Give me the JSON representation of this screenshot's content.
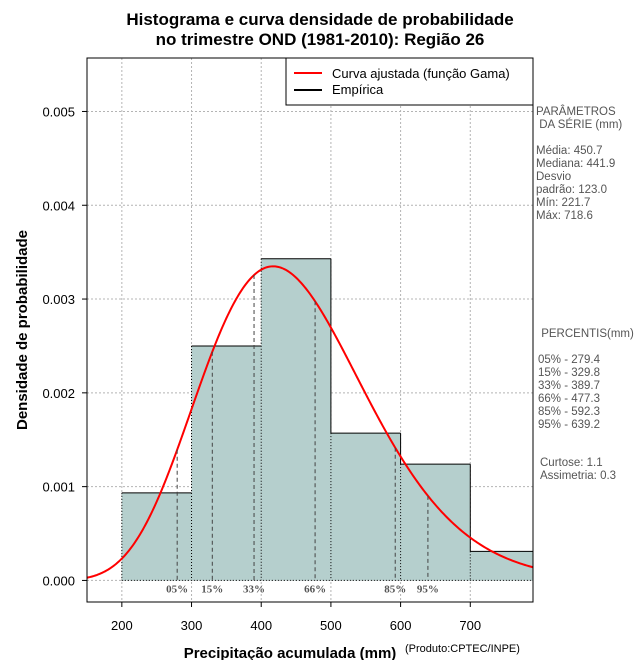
{
  "chart_data": {
    "type": "bar",
    "title": [
      "Histograma e curva densidade de probabilidade",
      "no trimestre OND (1981-2010): Região 26"
    ],
    "xlabel": "Precipitação acumulada (mm)",
    "xlabel_note": "(Produto:CPTEC/INPE)",
    "ylabel": "Densidade de probabilidade",
    "xlim": [
      150,
      790
    ],
    "ylim": [
      -0.00023,
      0.00557
    ],
    "x_ticks": [
      200,
      300,
      400,
      500,
      600,
      700
    ],
    "y_ticks": [
      0.0,
      0.001,
      0.002,
      0.003,
      0.004,
      0.005
    ],
    "y_tick_labels": [
      "0.000",
      "0.001",
      "0.002",
      "0.003",
      "0.004",
      "0.005"
    ],
    "grid": true,
    "legend_position": "top-right",
    "legend": [
      {
        "label": "Curva ajustada (função Gama)",
        "color": "#ff0000"
      },
      {
        "label": "Empírica",
        "color": "#000000"
      }
    ],
    "bins": [
      {
        "x0": 200,
        "x1": 300,
        "density": 0.000933
      },
      {
        "x0": 300,
        "x1": 400,
        "density": 0.0025
      },
      {
        "x0": 400,
        "x1": 500,
        "density": 0.00343
      },
      {
        "x0": 500,
        "x1": 600,
        "density": 0.00157
      },
      {
        "x0": 600,
        "x1": 700,
        "density": 0.00124
      },
      {
        "x0": 700,
        "x1": 800,
        "density": 0.00031
      }
    ],
    "gamma_fit": {
      "mean": 450.7,
      "sd": 123.0
    },
    "percentile_markers": [
      {
        "label": "05%",
        "value": 279.4
      },
      {
        "label": "15%",
        "value": 329.8
      },
      {
        "label": "33%",
        "value": 389.7
      },
      {
        "label": "66%",
        "value": 477.3
      },
      {
        "label": "85%",
        "value": 592.3
      },
      {
        "label": "95%",
        "value": 639.2
      }
    ],
    "bar_color": "#b5cfcd",
    "curve_color": "#ff0000"
  },
  "side_panel": {
    "params_header": [
      "PARÂMETROS",
      " DA SÉRIE (mm)"
    ],
    "params": [
      "Média:  450.7",
      "Mediana:  441.9",
      "Desvio",
      "padrão:  123.0",
      "Mín:  221.7",
      "Máx:  718.6"
    ],
    "percentis_header": " PERCENTIS(mm)",
    "percentis": [
      "05% -  279.4",
      "15% -  329.8",
      "33% -  389.7",
      "66% -  477.3",
      "85% -  592.3",
      "95% -  639.2"
    ],
    "stats": [
      "Curtose:  1.1",
      "Assimetria:  0.3"
    ]
  }
}
